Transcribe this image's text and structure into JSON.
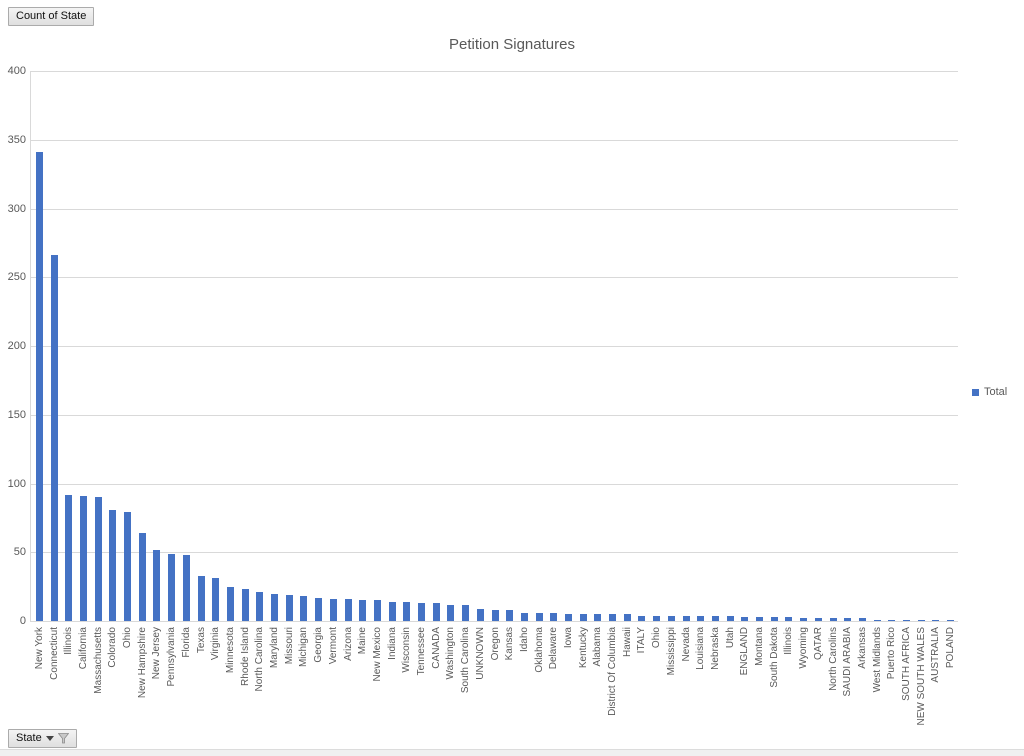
{
  "pivot_buttons": {
    "value_field_label": "Count of State",
    "axis_field_label": "State"
  },
  "legend": {
    "items": [
      "Total"
    ],
    "position": "right"
  },
  "colors": {
    "bar": "#4472c4",
    "gridline": "#d9d9d9",
    "axis_text": "#595959",
    "title_text": "#595959"
  },
  "chart_data": {
    "type": "bar",
    "title": "Petition Signatures",
    "xlabel": "",
    "ylabel": "",
    "ylim": [
      0,
      400
    ],
    "yticks": [
      0,
      50,
      100,
      150,
      200,
      250,
      300,
      350,
      400
    ],
    "grid": true,
    "legend_entries": [
      "Total"
    ],
    "legend_position": "right",
    "bar_color": "#4472c4",
    "categories": [
      "New York",
      "Connecticut",
      "Illinois",
      "California",
      "Massachusetts",
      "Colorado",
      "Ohio",
      "New Hampshire",
      "New Jersey",
      "Pennsylvania",
      "Florida",
      "Texas",
      "Virginia",
      "Minnesota",
      "Rhode Island",
      "North Carolina",
      "Maryland",
      "Missouri",
      "Michigan",
      "Georgia",
      "Vermont",
      "Arizona",
      "Maine",
      "New Mexico",
      "Indiana",
      "Wisconsin",
      "Tennessee",
      "CANADA",
      "Washington",
      "South Carolina",
      "UNKNOWN",
      "Oregon",
      "Kansas",
      "Idaho",
      "Oklahoma",
      "Delaware",
      "Iowa",
      "Kentucky",
      "Alabama",
      "District Of Columbia",
      "Hawaii",
      "ITALY",
      "Ohio",
      "Mississippi",
      "Nevada",
      "Louisiana",
      "Nebraska",
      "Utah",
      "ENGLAND",
      "Montana",
      "South Dakota",
      "Illinois",
      "Wyoming",
      "QATAR",
      "North Carolins",
      "SAUDI ARABIA",
      "Arkansas",
      "West Midlands",
      "Puerto Rico",
      "SOUTH AFRICA",
      "NEW SOUTH WALES",
      "AUSTRALIA",
      "POLAND"
    ],
    "values": [
      341,
      266,
      92,
      91,
      90,
      81,
      79,
      64,
      52,
      49,
      48,
      33,
      31,
      25,
      23,
      21,
      20,
      19,
      18,
      17,
      16,
      16,
      15,
      15,
      14,
      14,
      13,
      13,
      12,
      12,
      9,
      8,
      8,
      6,
      6,
      6,
      5,
      5,
      5,
      5,
      5,
      4,
      4,
      4,
      4,
      4,
      4,
      4,
      3,
      3,
      3,
      3,
      2,
      2,
      2,
      2,
      2,
      1,
      1,
      1,
      1,
      1,
      1
    ]
  }
}
